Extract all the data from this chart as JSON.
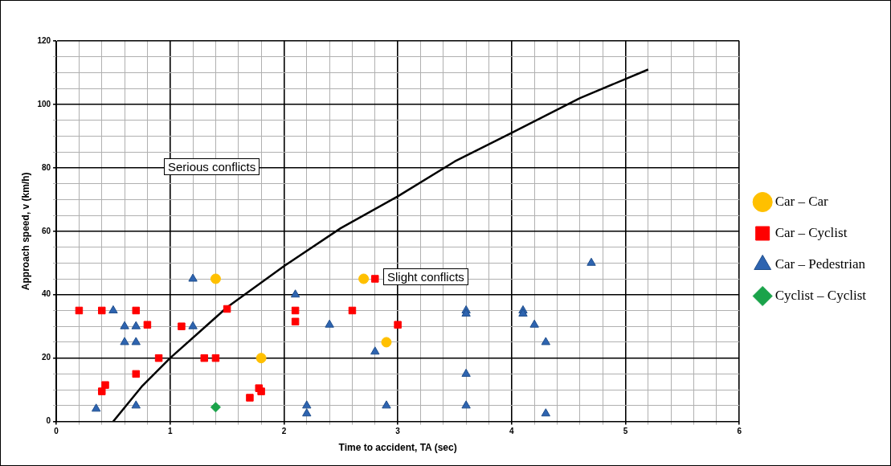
{
  "chart_data": {
    "type": "scatter",
    "xlabel": "Time to accident, TA (sec)",
    "ylabel": "Approach speed, v (km/h)",
    "annotations": [
      "Serious conflicts",
      "Slight conflicts"
    ],
    "series": [
      {
        "name": "Car – Car",
        "color": "#ffc000",
        "marker": "circle",
        "x": [
          1.4,
          1.8,
          2.7,
          2.9
        ],
        "values": [
          45,
          20,
          45,
          25
        ]
      },
      {
        "name": "Car – Cyclist",
        "color": "#ff0000",
        "marker": "square",
        "x": [
          0.2,
          0.4,
          0.7,
          0.8,
          0.4,
          0.43,
          0.7,
          0.9,
          1.1,
          1.3,
          1.4,
          1.5,
          1.7,
          1.78,
          1.8,
          2.1,
          2.1,
          2.6,
          2.8,
          3.0
        ],
        "values": [
          35,
          35,
          35,
          30.5,
          9.5,
          11.5,
          15,
          20,
          30,
          20,
          20,
          35.5,
          7.5,
          10.5,
          9.5,
          35,
          31.5,
          35,
          45,
          30.5
        ]
      },
      {
        "name": "Car – Pedestrian",
        "color": "#2e64b0",
        "marker": "triangle",
        "x": [
          0.35,
          0.5,
          0.6,
          0.6,
          0.7,
          0.7,
          0.7,
          1.2,
          1.2,
          2.1,
          2.2,
          2.2,
          2.4,
          2.8,
          2.9,
          3.6,
          3.6,
          3.6,
          3.6,
          4.1,
          4.1,
          4.2,
          4.3,
          4.3,
          4.7
        ],
        "values": [
          4,
          35,
          30,
          25,
          30,
          25,
          5,
          45,
          30,
          40,
          5,
          2.5,
          30.5,
          22,
          5,
          35,
          34,
          15,
          5,
          35,
          34,
          30.5,
          25,
          2.5,
          50
        ]
      },
      {
        "name": "Cyclist – Cyclist",
        "color": "#1aa34a",
        "marker": "diamond",
        "x": [
          1.4
        ],
        "values": [
          4.5
        ]
      },
      {
        "type": "line",
        "color": "#000000",
        "marker": "none",
        "x": [
          0.5,
          0.75,
          1,
          1.5,
          2,
          2.5,
          3,
          3.5,
          4,
          4.6,
          5.2
        ],
        "values": [
          0,
          11,
          20,
          36,
          49,
          61,
          71,
          82,
          91,
          102,
          111
        ]
      }
    ],
    "xlim": [
      0,
      6
    ],
    "ylim": [
      0,
      120
    ],
    "xticks": [
      0,
      {
        "value": 0.2,
        "label": null
      },
      {
        "value": 0.4,
        "label": null
      },
      {
        "value": 0.6,
        "label": null
      },
      {
        "value": 0.8,
        "label": null
      },
      1,
      {
        "value": 1.2,
        "label": null
      },
      {
        "value": 1.4,
        "label": null
      },
      {
        "value": 1.6,
        "label": null
      },
      {
        "value": 1.8,
        "label": null
      },
      2,
      {
        "value": 2.2,
        "label": null
      },
      {
        "value": 2.4,
        "label": null
      },
      {
        "value": 2.6,
        "label": null
      },
      {
        "value": 2.8,
        "label": null
      },
      3,
      {
        "value": 3.2,
        "label": null
      },
      {
        "value": 3.4,
        "label": null
      },
      {
        "value": 3.6,
        "label": null
      },
      {
        "value": 3.8,
        "label": null
      },
      4,
      {
        "value": 4.2,
        "label": null
      },
      {
        "value": 4.4,
        "label": null
      },
      {
        "value": 4.6,
        "label": null
      },
      {
        "value": 4.8,
        "label": null
      },
      5,
      {
        "value": 5.2,
        "label": null
      },
      {
        "value": 5.4,
        "label": null
      },
      {
        "value": 5.6,
        "label": null
      },
      {
        "value": 5.8,
        "label": null
      },
      6
    ],
    "yticks": [
      0,
      {
        "value": 5,
        "label": null
      },
      {
        "value": 10,
        "label": null
      },
      {
        "value": 15,
        "label": null
      },
      20,
      {
        "value": 25,
        "label": null
      },
      {
        "value": 30,
        "label": null
      },
      {
        "value": 35,
        "label": null
      },
      40,
      {
        "value": 45,
        "label": null
      },
      {
        "value": 50,
        "label": null
      },
      {
        "value": 55,
        "label": null
      },
      60,
      {
        "value": 65,
        "label": null
      },
      {
        "value": 70,
        "label": null
      },
      {
        "value": 75,
        "label": null
      },
      80,
      {
        "value": 85,
        "label": null
      },
      {
        "value": 90,
        "label": null
      },
      {
        "value": 95,
        "label": null
      },
      100,
      {
        "value": 105,
        "label": null
      },
      {
        "value": 110,
        "label": null
      },
      {
        "value": 115,
        "label": null
      },
      120
    ],
    "grid": true,
    "legend": "right"
  }
}
